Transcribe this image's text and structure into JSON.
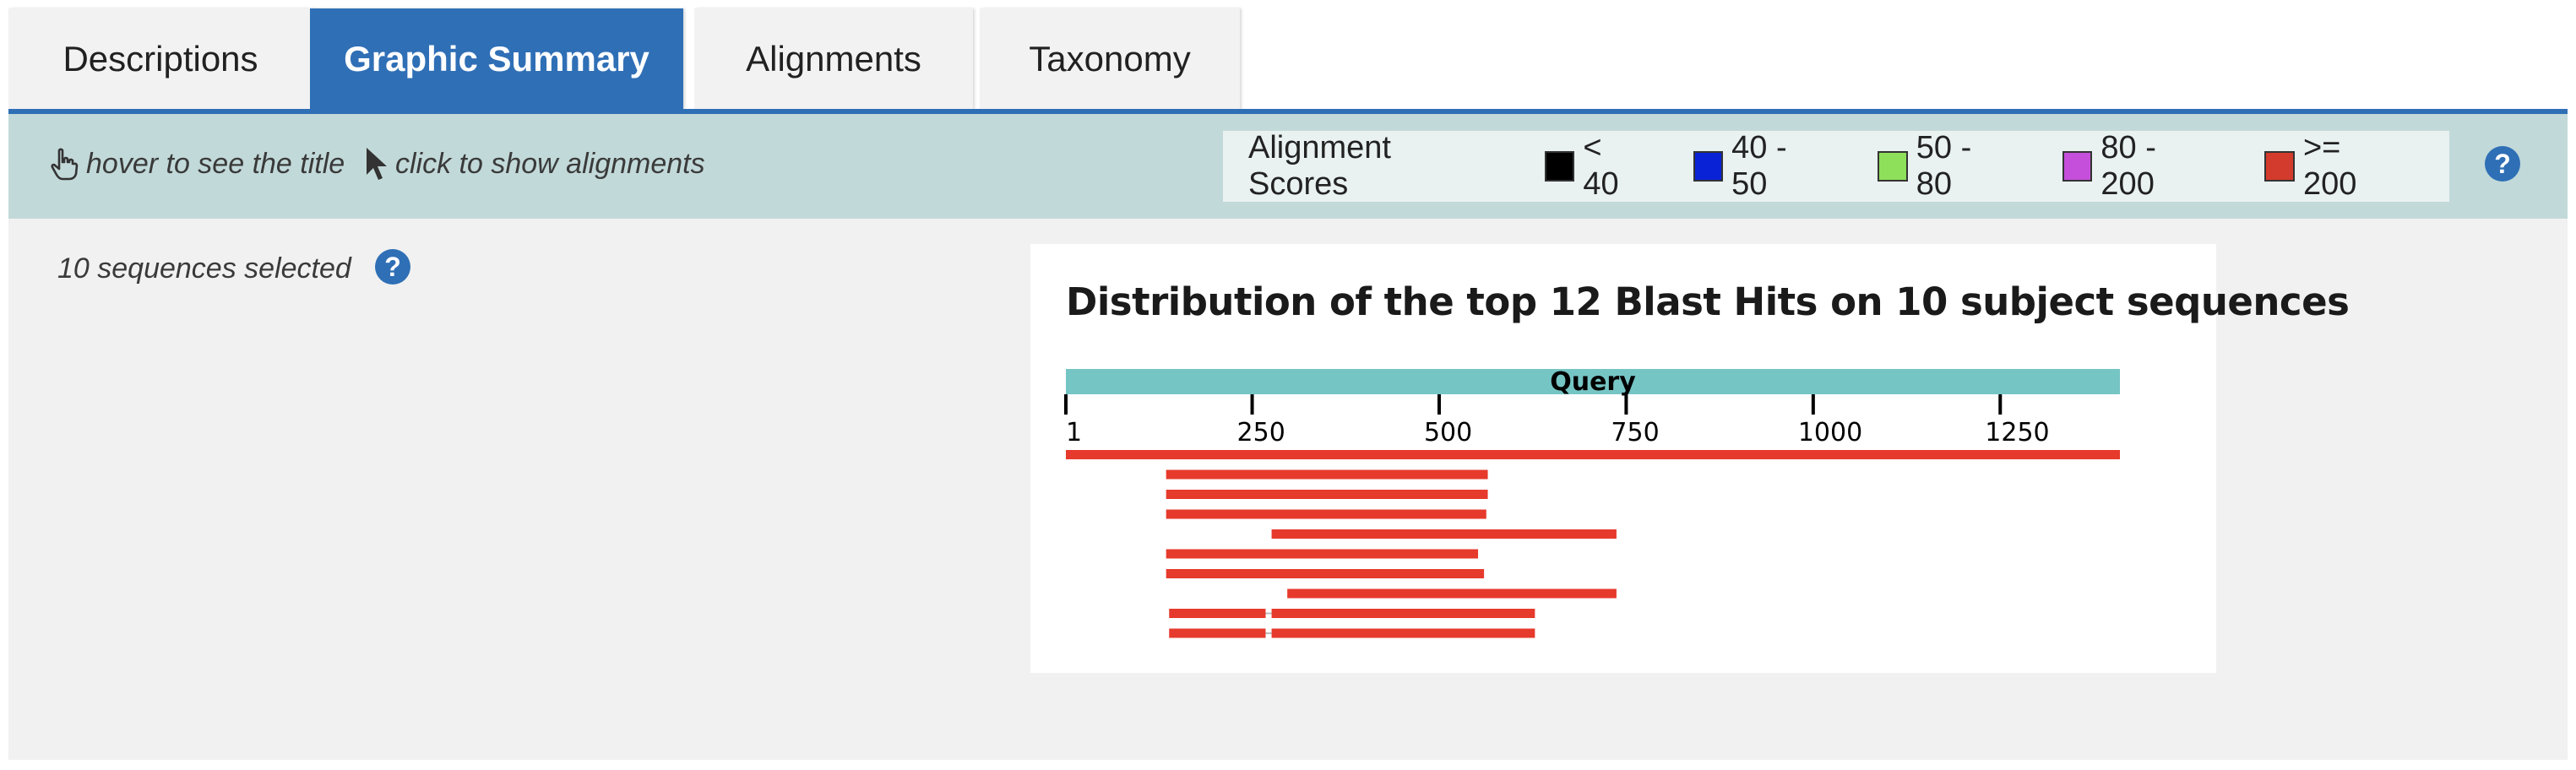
{
  "tabs": [
    {
      "label": "Descriptions",
      "active": false
    },
    {
      "label": "Graphic Summary",
      "active": true
    },
    {
      "label": "Alignments",
      "active": false
    },
    {
      "label": "Taxonomy",
      "active": false
    }
  ],
  "toolbar": {
    "hover_hint": "hover to see the title",
    "click_hint": "click to show alignments"
  },
  "legend": {
    "title": "Alignment Scores",
    "items": [
      {
        "label": "< 40",
        "color": "#000000"
      },
      {
        "label": "40 - 50",
        "color": "#0a22d6"
      },
      {
        "label": "50 - 80",
        "color": "#8ee05a"
      },
      {
        "label": "80 - 200",
        "color": "#c54fdb"
      },
      {
        "label": ">= 200",
        "color": "#d33b2c"
      }
    ]
  },
  "selection": {
    "text": "10 sequences selected"
  },
  "help_icon_label": "?",
  "chart_data": {
    "type": "alignment-map",
    "title": "Distribution of the top 12 Blast Hits on 10 subject sequences",
    "query_label": "Query",
    "query_range": [
      1,
      1410
    ],
    "ticks": [
      1,
      250,
      500,
      750,
      1000,
      1250
    ],
    "hit_color": "#e63a2c",
    "query_bar_color": "#76c5c5",
    "hits": [
      [
        [
          1,
          1410
        ]
      ],
      [
        [
          135,
          565
        ]
      ],
      [
        [
          135,
          565
        ]
      ],
      [
        [
          135,
          563
        ]
      ],
      [
        [
          276,
          737
        ]
      ],
      [
        [
          135,
          552
        ]
      ],
      [
        [
          135,
          560
        ]
      ],
      [
        [
          297,
          737
        ]
      ],
      [
        [
          139,
          268
        ],
        [
          276,
          628
        ]
      ],
      [
        [
          139,
          268
        ],
        [
          276,
          628
        ]
      ]
    ]
  }
}
